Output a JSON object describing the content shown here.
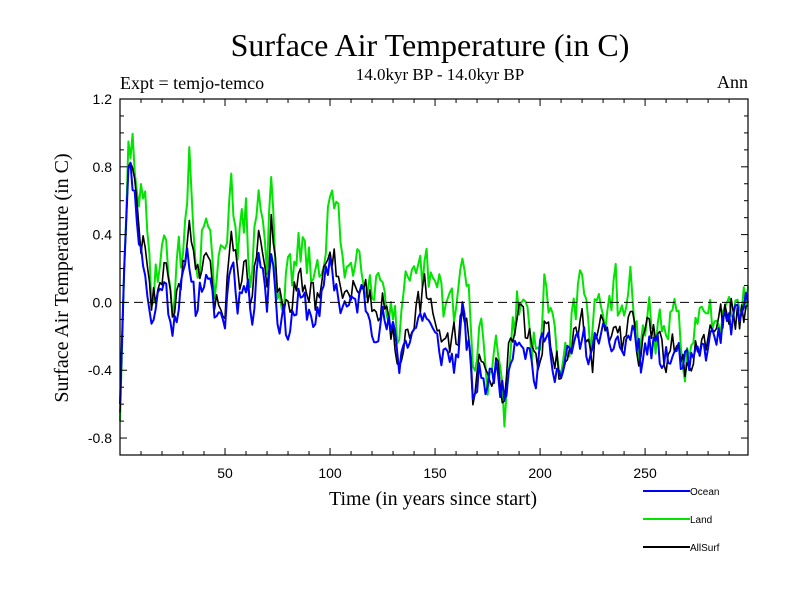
{
  "chart_data": {
    "type": "line",
    "title": "Surface Air Temperature (in C)",
    "subtitle": "14.0kyr BP - 14.0kyr BP",
    "experiment_label": "Expt = temjo-temco",
    "period_label": "Ann",
    "xlabel": "Time (in years since start)",
    "ylabel": "Surface Air Temperature (in C)",
    "xlim": [
      0,
      299
    ],
    "ylim": [
      -0.9,
      1.2
    ],
    "xticks": [
      50,
      100,
      150,
      200,
      250
    ],
    "yticks": [
      -0.8,
      -0.4,
      0.0,
      0.4,
      0.8,
      1.2
    ],
    "ytick_labels": [
      "-0.8",
      "-0.4",
      "0.0",
      "0.4",
      "0.8",
      "1.2"
    ],
    "reference_line": 0.0,
    "legend_position": "bottom-right",
    "series": [
      {
        "name": "Ocean",
        "color": "#0000ff",
        "keypoints": [
          [
            0,
            -0.6
          ],
          [
            2,
            0.2
          ],
          [
            4,
            0.78
          ],
          [
            6,
            0.72
          ],
          [
            8,
            0.55
          ],
          [
            10,
            0.3
          ],
          [
            12,
            0.2
          ],
          [
            15,
            -0.15
          ],
          [
            20,
            0.15
          ],
          [
            25,
            -0.1
          ],
          [
            30,
            0.1
          ],
          [
            33,
            0.25
          ],
          [
            36,
            0.0
          ],
          [
            40,
            0.15
          ],
          [
            45,
            -0.05
          ],
          [
            50,
            -0.1
          ],
          [
            53,
            0.3
          ],
          [
            56,
            0.05
          ],
          [
            60,
            0.1
          ],
          [
            63,
            -0.05
          ],
          [
            66,
            0.35
          ],
          [
            70,
            0.0
          ],
          [
            72,
            0.35
          ],
          [
            75,
            -0.05
          ],
          [
            80,
            -0.15
          ],
          [
            85,
            0.0
          ],
          [
            90,
            -0.05
          ],
          [
            95,
            -0.1
          ],
          [
            100,
            0.25
          ],
          [
            105,
            0.0
          ],
          [
            110,
            -0.05
          ],
          [
            115,
            0.05
          ],
          [
            120,
            -0.1
          ],
          [
            125,
            -0.1
          ],
          [
            130,
            -0.2
          ],
          [
            133,
            -0.35
          ],
          [
            136,
            -0.2
          ],
          [
            140,
            -0.15
          ],
          [
            145,
            -0.05
          ],
          [
            150,
            -0.25
          ],
          [
            155,
            -0.3
          ],
          [
            160,
            -0.35
          ],
          [
            163,
            -0.1
          ],
          [
            166,
            -0.3
          ],
          [
            168,
            -0.55
          ],
          [
            172,
            -0.4
          ],
          [
            175,
            -0.5
          ],
          [
            180,
            -0.35
          ],
          [
            183,
            -0.6
          ],
          [
            186,
            -0.25
          ],
          [
            190,
            -0.15
          ],
          [
            195,
            -0.3
          ],
          [
            198,
            -0.45
          ],
          [
            202,
            -0.2
          ],
          [
            206,
            -0.3
          ],
          [
            210,
            -0.45
          ],
          [
            215,
            -0.3
          ],
          [
            220,
            -0.2
          ],
          [
            225,
            -0.35
          ],
          [
            228,
            -0.15
          ],
          [
            232,
            -0.3
          ],
          [
            236,
            -0.2
          ],
          [
            240,
            -0.3
          ],
          [
            244,
            -0.15
          ],
          [
            248,
            -0.35
          ],
          [
            252,
            -0.25
          ],
          [
            256,
            -0.3
          ],
          [
            260,
            -0.35
          ],
          [
            265,
            -0.3
          ],
          [
            270,
            -0.4
          ],
          [
            275,
            -0.35
          ],
          [
            280,
            -0.25
          ],
          [
            285,
            -0.2
          ],
          [
            290,
            -0.1
          ],
          [
            295,
            -0.15
          ],
          [
            299,
            0.0
          ]
        ],
        "noise_amp": 0.1,
        "seed": 11
      },
      {
        "name": "Land",
        "color": "#00e400",
        "keypoints": [
          [
            0,
            -0.7
          ],
          [
            2,
            0.2
          ],
          [
            4,
            0.85
          ],
          [
            6,
            0.9
          ],
          [
            8,
            0.75
          ],
          [
            10,
            0.6
          ],
          [
            12,
            0.5
          ],
          [
            15,
            0.1
          ],
          [
            20,
            0.35
          ],
          [
            25,
            0.05
          ],
          [
            30,
            0.35
          ],
          [
            33,
            0.8
          ],
          [
            36,
            0.25
          ],
          [
            40,
            0.45
          ],
          [
            45,
            0.1
          ],
          [
            50,
            0.2
          ],
          [
            53,
            0.9
          ],
          [
            56,
            0.3
          ],
          [
            60,
            0.5
          ],
          [
            63,
            0.1
          ],
          [
            66,
            0.7
          ],
          [
            70,
            0.2
          ],
          [
            72,
            0.7
          ],
          [
            75,
            0.1
          ],
          [
            80,
            0.1
          ],
          [
            85,
            0.3
          ],
          [
            90,
            0.2
          ],
          [
            95,
            0.1
          ],
          [
            100,
            0.65
          ],
          [
            105,
            0.35
          ],
          [
            110,
            0.2
          ],
          [
            115,
            0.3
          ],
          [
            120,
            0.15
          ],
          [
            125,
            0.15
          ],
          [
            130,
            -0.05
          ],
          [
            133,
            -0.3
          ],
          [
            136,
            0.0
          ],
          [
            140,
            0.05
          ],
          [
            145,
            0.2
          ],
          [
            150,
            0.05
          ],
          [
            155,
            0.0
          ],
          [
            160,
            0.0
          ],
          [
            163,
            0.2
          ],
          [
            166,
            0.05
          ],
          [
            168,
            -0.45
          ],
          [
            172,
            -0.2
          ],
          [
            175,
            -0.45
          ],
          [
            180,
            -0.25
          ],
          [
            183,
            -0.65
          ],
          [
            186,
            -0.15
          ],
          [
            190,
            0.05
          ],
          [
            195,
            -0.1
          ],
          [
            198,
            -0.35
          ],
          [
            202,
            0.05
          ],
          [
            206,
            -0.1
          ],
          [
            210,
            -0.4
          ],
          [
            215,
            -0.1
          ],
          [
            220,
            0.05
          ],
          [
            225,
            -0.25
          ],
          [
            228,
            0.2
          ],
          [
            232,
            -0.15
          ],
          [
            236,
            0.05
          ],
          [
            240,
            -0.15
          ],
          [
            244,
            0.1
          ],
          [
            248,
            -0.3
          ],
          [
            252,
            -0.05
          ],
          [
            256,
            -0.2
          ],
          [
            260,
            -0.25
          ],
          [
            265,
            -0.1
          ],
          [
            270,
            -0.3
          ],
          [
            275,
            -0.2
          ],
          [
            280,
            -0.1
          ],
          [
            285,
            -0.05
          ],
          [
            290,
            0.1
          ],
          [
            295,
            0.05
          ],
          [
            299,
            0.0
          ]
        ],
        "noise_amp": 0.15,
        "seed": 29
      },
      {
        "name": "AllSurf",
        "color": "#000000",
        "keypoints": [
          [
            0,
            -0.65
          ],
          [
            2,
            0.2
          ],
          [
            4,
            0.78
          ],
          [
            6,
            0.75
          ],
          [
            8,
            0.6
          ],
          [
            10,
            0.38
          ],
          [
            12,
            0.3
          ],
          [
            15,
            -0.05
          ],
          [
            20,
            0.22
          ],
          [
            25,
            0.0
          ],
          [
            30,
            0.18
          ],
          [
            33,
            0.4
          ],
          [
            36,
            0.08
          ],
          [
            40,
            0.25
          ],
          [
            45,
            0.02
          ],
          [
            50,
            0.0
          ],
          [
            53,
            0.5
          ],
          [
            56,
            0.12
          ],
          [
            60,
            0.22
          ],
          [
            63,
            0.02
          ],
          [
            66,
            0.45
          ],
          [
            70,
            0.08
          ],
          [
            72,
            0.47
          ],
          [
            75,
            0.02
          ],
          [
            80,
            -0.05
          ],
          [
            85,
            0.1
          ],
          [
            90,
            0.05
          ],
          [
            95,
            0.0
          ],
          [
            100,
            0.38
          ],
          [
            105,
            0.12
          ],
          [
            110,
            0.05
          ],
          [
            115,
            0.13
          ],
          [
            120,
            0.0
          ],
          [
            125,
            0.0
          ],
          [
            130,
            -0.15
          ],
          [
            133,
            -0.33
          ],
          [
            136,
            -0.13
          ],
          [
            140,
            -0.08
          ],
          [
            145,
            0.05
          ],
          [
            150,
            -0.15
          ],
          [
            155,
            -0.2
          ],
          [
            160,
            -0.22
          ],
          [
            163,
            0.0
          ],
          [
            166,
            -0.2
          ],
          [
            168,
            -0.52
          ],
          [
            172,
            -0.33
          ],
          [
            175,
            -0.48
          ],
          [
            180,
            -0.32
          ],
          [
            183,
            -0.62
          ],
          [
            186,
            -0.22
          ],
          [
            190,
            -0.08
          ],
          [
            195,
            -0.23
          ],
          [
            198,
            -0.42
          ],
          [
            202,
            -0.12
          ],
          [
            206,
            -0.23
          ],
          [
            210,
            -0.43
          ],
          [
            215,
            -0.23
          ],
          [
            220,
            -0.12
          ],
          [
            225,
            -0.32
          ],
          [
            228,
            -0.03
          ],
          [
            232,
            -0.25
          ],
          [
            236,
            -0.12
          ],
          [
            240,
            -0.25
          ],
          [
            244,
            -0.07
          ],
          [
            248,
            -0.33
          ],
          [
            252,
            -0.18
          ],
          [
            256,
            -0.27
          ],
          [
            260,
            -0.32
          ],
          [
            265,
            -0.23
          ],
          [
            270,
            -0.37
          ],
          [
            275,
            -0.3
          ],
          [
            280,
            -0.2
          ],
          [
            285,
            -0.14
          ],
          [
            290,
            -0.03
          ],
          [
            295,
            -0.08
          ],
          [
            299,
            0.0
          ]
        ],
        "noise_amp": 0.1,
        "seed": 47
      }
    ]
  }
}
